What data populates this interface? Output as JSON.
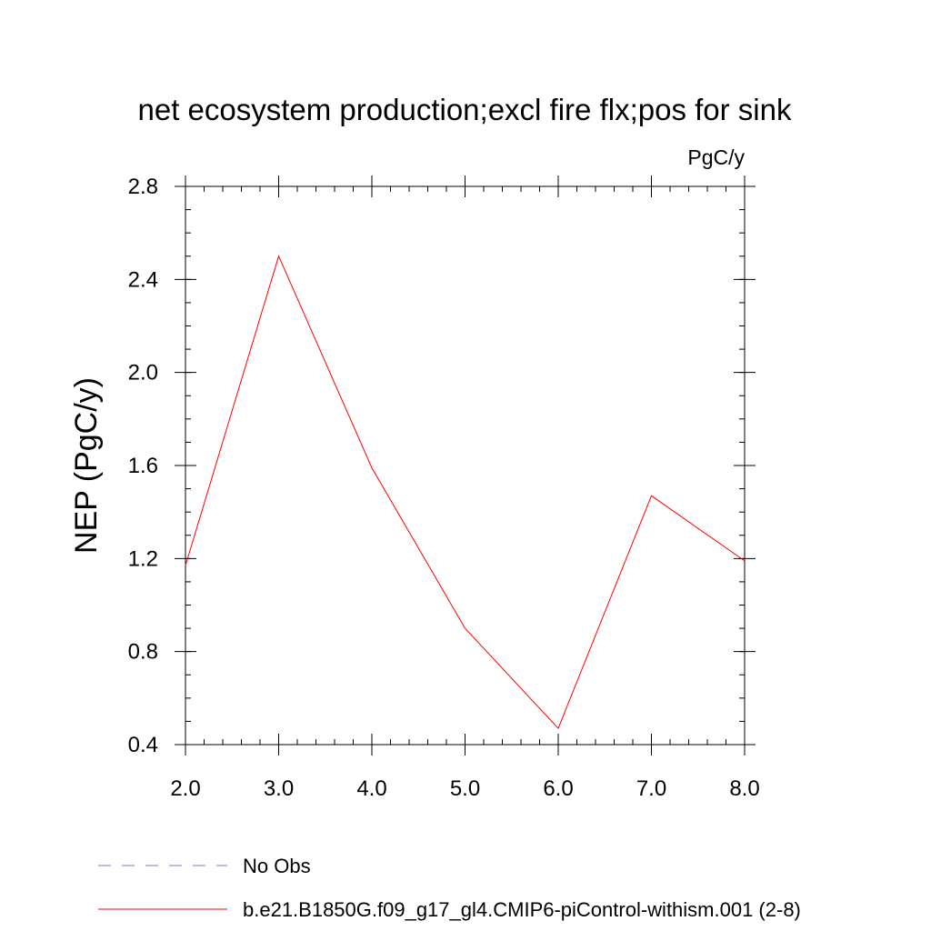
{
  "chart_data": {
    "type": "line",
    "title": "net ecosystem production;excl fire flx;pos for sink",
    "units_label": "PgC/y",
    "xlabel": "",
    "ylabel": "NEP  (PgC/y)",
    "xlim": [
      2.0,
      8.0
    ],
    "ylim": [
      0.4,
      2.8
    ],
    "xticks": [
      "2.0",
      "3.0",
      "4.0",
      "5.0",
      "6.0",
      "7.0",
      "8.0"
    ],
    "yticks": [
      "0.4",
      "0.8",
      "1.2",
      "1.6",
      "2.0",
      "2.4",
      "2.8"
    ],
    "grid": false,
    "legend_position": "bottom",
    "series": [
      {
        "name": "b.e21.B1850G.f09_g17_gl4.CMIP6-piControl-withism.001 (2-8)",
        "color": "#ff0000",
        "style": "solid",
        "x": [
          2.0,
          3.0,
          4.0,
          5.0,
          6.0,
          7.0,
          8.0
        ],
        "y": [
          1.17,
          2.5,
          1.59,
          0.9,
          0.47,
          1.47,
          1.19
        ]
      }
    ],
    "legend": [
      {
        "name": "No Obs",
        "color": "#7d7dc8",
        "style": "dashed"
      },
      {
        "name": "b.e21.B1850G.f09_g17_gl4.CMIP6-piControl-withism.001 (2-8)",
        "color": "#ff0000",
        "style": "solid"
      }
    ]
  }
}
